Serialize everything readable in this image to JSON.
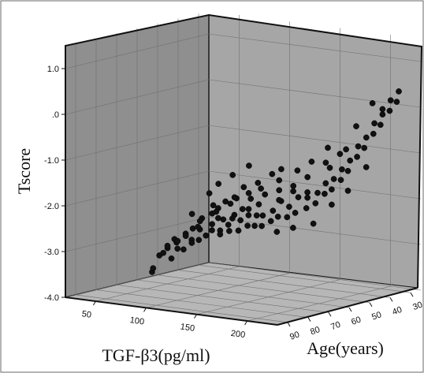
{
  "chart_data": {
    "type": "scatter",
    "subtype": "3d",
    "title": "",
    "axes": {
      "x": {
        "label": "TGF-β3(pg/ml)",
        "range": [
          20,
          230
        ],
        "ticks": [
          "50",
          "100",
          "150",
          "200"
        ],
        "tick_values": [
          50,
          100,
          150,
          200
        ]
      },
      "y": {
        "label": "Age(years)",
        "range": [
          25,
          95
        ],
        "ticks": [
          "90",
          "80",
          "70",
          "60",
          "50",
          "40",
          "30"
        ],
        "tick_values": [
          90,
          80,
          70,
          60,
          50,
          40,
          30
        ]
      },
      "z": {
        "label": "Tscore",
        "range": [
          -4.0,
          1.5
        ],
        "ticks": [
          "1.0",
          ".0",
          "-1.0",
          "-2.0",
          "-3.0",
          "-4.0"
        ],
        "tick_values": [
          1.0,
          0.0,
          -1.0,
          -2.0,
          -3.0,
          -4.0
        ]
      }
    },
    "points": [
      {
        "x": 45,
        "y": 65,
        "z": -3.7
      },
      {
        "x": 40,
        "y": 55,
        "z": -3.3
      },
      {
        "x": 42,
        "y": 60,
        "z": -3.4
      },
      {
        "x": 50,
        "y": 62,
        "z": -3.3
      },
      {
        "x": 55,
        "y": 58,
        "z": -3.1
      },
      {
        "x": 48,
        "y": 66,
        "z": -3.6
      },
      {
        "x": 60,
        "y": 60,
        "z": -3.2
      },
      {
        "x": 58,
        "y": 62,
        "z": -3.4
      },
      {
        "x": 62,
        "y": 57,
        "z": -2.9
      },
      {
        "x": 65,
        "y": 55,
        "z": -2.8
      },
      {
        "x": 57,
        "y": 60,
        "z": -3.0
      },
      {
        "x": 70,
        "y": 58,
        "z": -3.0
      },
      {
        "x": 68,
        "y": 52,
        "z": -2.6
      },
      {
        "x": 72,
        "y": 55,
        "z": -2.8
      },
      {
        "x": 75,
        "y": 57,
        "z": -3.0
      },
      {
        "x": 66,
        "y": 60,
        "z": -3.2
      },
      {
        "x": 78,
        "y": 52,
        "z": -2.7
      },
      {
        "x": 80,
        "y": 56,
        "z": -2.9
      },
      {
        "x": 74,
        "y": 50,
        "z": -2.5
      },
      {
        "x": 82,
        "y": 54,
        "z": -2.8
      },
      {
        "x": 85,
        "y": 50,
        "z": -2.6
      },
      {
        "x": 88,
        "y": 53,
        "z": -2.8
      },
      {
        "x": 76,
        "y": 48,
        "z": -2.4
      },
      {
        "x": 84,
        "y": 46,
        "z": -2.3
      },
      {
        "x": 90,
        "y": 50,
        "z": -2.7
      },
      {
        "x": 92,
        "y": 48,
        "z": -2.5
      },
      {
        "x": 95,
        "y": 52,
        "z": -2.8
      },
      {
        "x": 86,
        "y": 44,
        "z": -2.2
      },
      {
        "x": 98,
        "y": 48,
        "z": -2.6
      },
      {
        "x": 100,
        "y": 50,
        "z": -2.8
      },
      {
        "x": 94,
        "y": 45,
        "z": -2.4
      },
      {
        "x": 102,
        "y": 46,
        "z": -2.5
      },
      {
        "x": 105,
        "y": 48,
        "z": -2.7
      },
      {
        "x": 96,
        "y": 42,
        "z": -2.2
      },
      {
        "x": 108,
        "y": 45,
        "z": -2.5
      },
      {
        "x": 110,
        "y": 47,
        "z": -2.7
      },
      {
        "x": 104,
        "y": 42,
        "z": -2.3
      },
      {
        "x": 112,
        "y": 44,
        "z": -2.5
      },
      {
        "x": 115,
        "y": 46,
        "z": -2.7
      },
      {
        "x": 118,
        "y": 42,
        "z": -2.4
      },
      {
        "x": 120,
        "y": 44,
        "z": -2.6
      },
      {
        "x": 122,
        "y": 40,
        "z": -2.2
      },
      {
        "x": 125,
        "y": 43,
        "z": -2.5
      },
      {
        "x": 128,
        "y": 45,
        "z": -2.8
      },
      {
        "x": 116,
        "y": 38,
        "z": -2.0
      },
      {
        "x": 130,
        "y": 40,
        "z": -2.3
      },
      {
        "x": 132,
        "y": 42,
        "z": -2.5
      },
      {
        "x": 135,
        "y": 38,
        "z": -2.1
      },
      {
        "x": 138,
        "y": 41,
        "z": -2.4
      },
      {
        "x": 140,
        "y": 43,
        "z": -2.7
      },
      {
        "x": 126,
        "y": 36,
        "z": -1.9
      },
      {
        "x": 142,
        "y": 37,
        "z": -2.1
      },
      {
        "x": 145,
        "y": 39,
        "z": -2.3
      },
      {
        "x": 148,
        "y": 35,
        "z": -2.0
      },
      {
        "x": 150,
        "y": 37,
        "z": -2.2
      },
      {
        "x": 136,
        "y": 34,
        "z": -1.7
      },
      {
        "x": 152,
        "y": 33,
        "z": -1.8
      },
      {
        "x": 155,
        "y": 35,
        "z": -2.0
      },
      {
        "x": 158,
        "y": 32,
        "z": -1.7
      },
      {
        "x": 160,
        "y": 34,
        "z": -1.9
      },
      {
        "x": 146,
        "y": 30,
        "z": -1.4
      },
      {
        "x": 162,
        "y": 30,
        "z": -1.5
      },
      {
        "x": 165,
        "y": 32,
        "z": -1.7
      },
      {
        "x": 168,
        "y": 29,
        "z": -1.3
      },
      {
        "x": 170,
        "y": 31,
        "z": -1.5
      },
      {
        "x": 156,
        "y": 28,
        "z": -1.2
      },
      {
        "x": 172,
        "y": 27,
        "z": -1.0
      },
      {
        "x": 175,
        "y": 29,
        "z": -1.2
      },
      {
        "x": 178,
        "y": 26,
        "z": -0.8
      },
      {
        "x": 180,
        "y": 28,
        "z": -1.0
      },
      {
        "x": 166,
        "y": 25,
        "z": -0.6
      },
      {
        "x": 182,
        "y": 24,
        "z": -0.5
      },
      {
        "x": 185,
        "y": 26,
        "z": -0.7
      },
      {
        "x": 188,
        "y": 23,
        "z": -0.3
      },
      {
        "x": 190,
        "y": 25,
        "z": -0.5
      },
      {
        "x": 176,
        "y": 22,
        "z": -0.1
      },
      {
        "x": 192,
        "y": 21,
        "z": 0.0
      },
      {
        "x": 195,
        "y": 23,
        "z": -0.2
      },
      {
        "x": 198,
        "y": 20,
        "z": 0.2
      },
      {
        "x": 200,
        "y": 22,
        "z": 0.0
      },
      {
        "x": 60,
        "y": 40,
        "z": -2.0
      },
      {
        "x": 70,
        "y": 38,
        "z": -1.8
      },
      {
        "x": 80,
        "y": 35,
        "z": -1.6
      },
      {
        "x": 55,
        "y": 42,
        "z": -2.2
      },
      {
        "x": 65,
        "y": 45,
        "z": -2.4
      },
      {
        "x": 75,
        "y": 44,
        "z": -2.3
      },
      {
        "x": 85,
        "y": 40,
        "z": -2.0
      },
      {
        "x": 95,
        "y": 38,
        "z": -1.9
      },
      {
        "x": 105,
        "y": 36,
        "z": -1.7
      },
      {
        "x": 110,
        "y": 34,
        "z": -1.6
      },
      {
        "x": 50,
        "y": 48,
        "z": -2.6
      },
      {
        "x": 62,
        "y": 50,
        "z": -2.7
      },
      {
        "x": 72,
        "y": 47,
        "z": -2.5
      },
      {
        "x": 82,
        "y": 43,
        "z": -2.2
      },
      {
        "x": 92,
        "y": 41,
        "z": -2.1
      },
      {
        "x": 100,
        "y": 39,
        "z": -2.0
      },
      {
        "x": 114,
        "y": 37,
        "z": -1.8
      },
      {
        "x": 124,
        "y": 33,
        "z": -1.6
      },
      {
        "x": 134,
        "y": 31,
        "z": -1.4
      },
      {
        "x": 144,
        "y": 28,
        "z": -1.1
      },
      {
        "x": 56,
        "y": 54,
        "z": -3.0
      },
      {
        "x": 64,
        "y": 52,
        "z": -2.8
      },
      {
        "x": 78,
        "y": 49,
        "z": -2.6
      },
      {
        "x": 88,
        "y": 47,
        "z": -2.6
      },
      {
        "x": 98,
        "y": 44,
        "z": -2.4
      },
      {
        "x": 106,
        "y": 40,
        "z": -2.1
      },
      {
        "x": 118,
        "y": 39,
        "z": -2.2
      },
      {
        "x": 128,
        "y": 37,
        "z": -2.0
      },
      {
        "x": 46,
        "y": 58,
        "z": -3.2
      },
      {
        "x": 52,
        "y": 56,
        "z": -3.1
      },
      {
        "x": 66,
        "y": 56,
        "z": -3.1
      },
      {
        "x": 86,
        "y": 52,
        "z": -2.9
      },
      {
        "x": 140,
        "y": 36,
        "z": -2.0
      },
      {
        "x": 150,
        "y": 30,
        "z": -1.5
      },
      {
        "x": 160,
        "y": 27,
        "z": -1.1
      },
      {
        "x": 186,
        "y": 22,
        "z": -0.2
      },
      {
        "x": 174,
        "y": 33,
        "z": -1.9
      },
      {
        "x": 154,
        "y": 40,
        "z": -2.6
      },
      {
        "x": 164,
        "y": 36,
        "z": -2.2
      },
      {
        "x": 184,
        "y": 29,
        "z": -1.4
      }
    ]
  }
}
